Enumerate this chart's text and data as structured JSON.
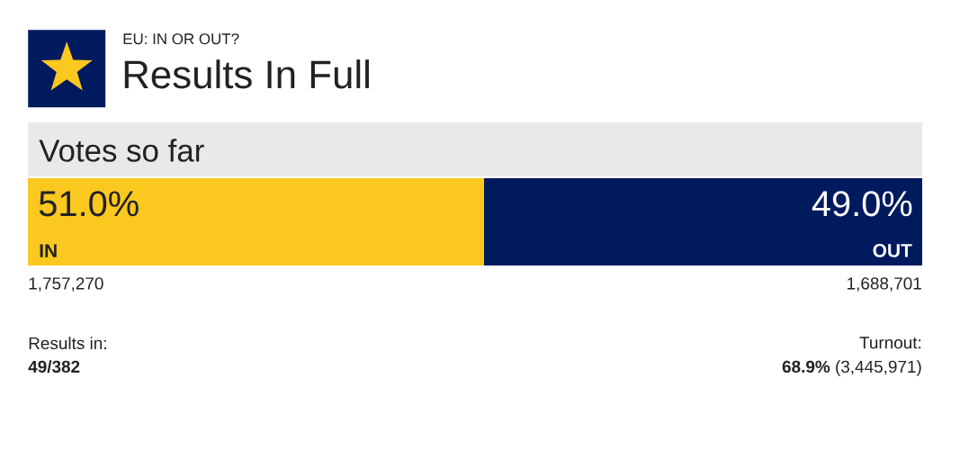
{
  "chart_data": {
    "type": "bar",
    "orientation": "horizontal",
    "stacked": true,
    "subtitle": "EU: IN OR OUT?",
    "title": "Results In Full",
    "categories": [
      null
    ],
    "series": [
      {
        "name": "IN",
        "color": "#fbc820",
        "values": [
          51.0
        ],
        "value_labels": [
          "51.0%"
        ]
      },
      {
        "name": "OUT",
        "color": "#001a5e",
        "values": [
          49.0
        ],
        "value_labels": [
          "49.0%"
        ]
      }
    ],
    "annotations": [
      "Votes so far",
      "1,757,270",
      "1,688,701",
      "Results in:",
      "49/382",
      "Turnout:",
      "**68.9%** (3,445,971)"
    ]
  }
}
